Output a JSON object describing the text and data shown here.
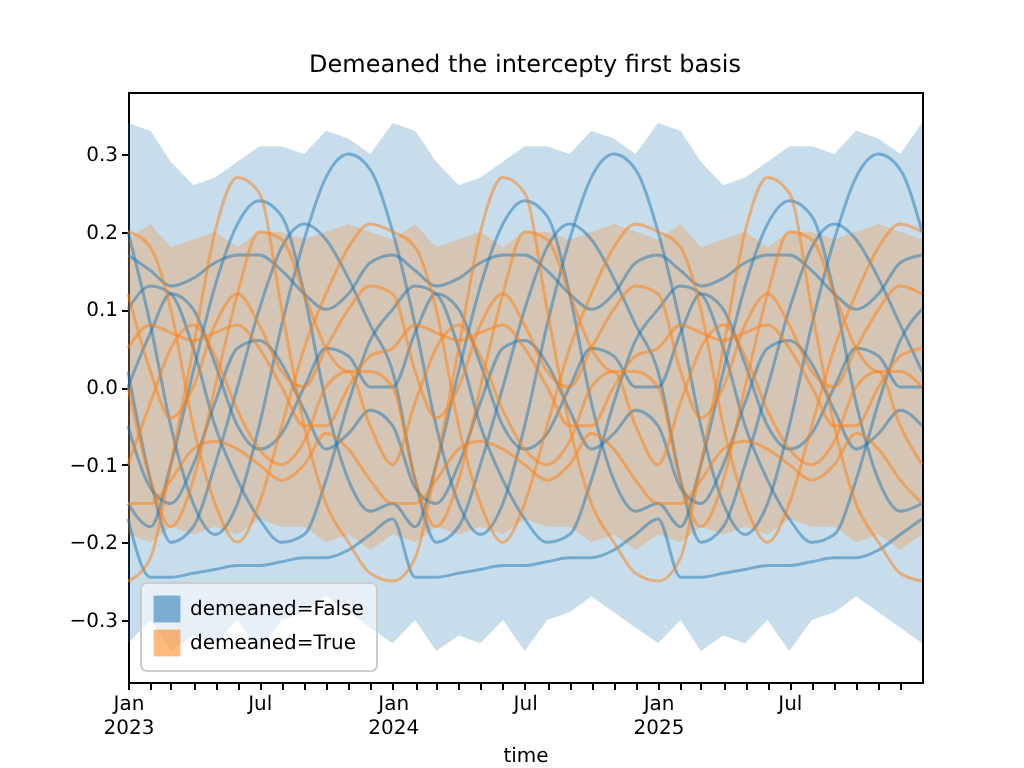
{
  "chart_data": {
    "type": "line",
    "title": "Demeaned the intercepty first basis",
    "xlabel": "time",
    "legend": "bottom left",
    "x": [
      "2023-01-01",
      "2023-02-01",
      "2023-03-01",
      "2023-04-01",
      "2023-05-01",
      "2023-06-01",
      "2023-07-01",
      "2023-08-01",
      "2023-09-01",
      "2023-10-01",
      "2023-11-01",
      "2023-12-01",
      "2024-01-01",
      "2024-02-01",
      "2024-03-01",
      "2024-04-01",
      "2024-05-01",
      "2024-06-01",
      "2024-07-01",
      "2024-08-01",
      "2024-09-01",
      "2024-10-01",
      "2024-11-01",
      "2024-12-01",
      "2025-01-01",
      "2025-02-01",
      "2025-03-01",
      "2025-04-01",
      "2025-05-01",
      "2025-06-01",
      "2025-07-01",
      "2025-08-01",
      "2025-09-01",
      "2025-10-01",
      "2025-11-01",
      "2025-12-01",
      "2025-12-31"
    ],
    "xlim": [
      "2023-01-01",
      "2025-12-31"
    ],
    "xticks": [
      {
        "value": "2023-01-01",
        "label": "Jan\n2023"
      },
      {
        "value": "2023-02-01",
        "label": null
      },
      {
        "value": "2023-03-01",
        "label": null
      },
      {
        "value": "2023-04-01",
        "label": null
      },
      {
        "value": "2023-05-01",
        "label": null
      },
      {
        "value": "2023-06-01",
        "label": null
      },
      {
        "value": "2023-07-01",
        "label": "Jul"
      },
      {
        "value": "2023-08-01",
        "label": null
      },
      {
        "value": "2023-09-01",
        "label": null
      },
      {
        "value": "2023-10-01",
        "label": null
      },
      {
        "value": "2023-11-01",
        "label": null
      },
      {
        "value": "2023-12-01",
        "label": null
      },
      {
        "value": "2024-01-01",
        "label": "Jan\n2024"
      },
      {
        "value": "2024-02-01",
        "label": null
      },
      {
        "value": "2024-03-01",
        "label": null
      },
      {
        "value": "2024-04-01",
        "label": null
      },
      {
        "value": "2024-05-01",
        "label": null
      },
      {
        "value": "2024-06-01",
        "label": null
      },
      {
        "value": "2024-07-01",
        "label": "Jul"
      },
      {
        "value": "2024-08-01",
        "label": null
      },
      {
        "value": "2024-09-01",
        "label": null
      },
      {
        "value": "2024-10-01",
        "label": null
      },
      {
        "value": "2024-11-01",
        "label": null
      },
      {
        "value": "2024-12-01",
        "label": null
      },
      {
        "value": "2025-01-01",
        "label": "Jan\n2025"
      },
      {
        "value": "2025-02-01",
        "label": null
      },
      {
        "value": "2025-03-01",
        "label": null
      },
      {
        "value": "2025-04-01",
        "label": null
      },
      {
        "value": "2025-05-01",
        "label": null
      },
      {
        "value": "2025-06-01",
        "label": null
      },
      {
        "value": "2025-07-01",
        "label": "Jul"
      },
      {
        "value": "2025-08-01",
        "label": null
      },
      {
        "value": "2025-09-01",
        "label": null
      },
      {
        "value": "2025-10-01",
        "label": null
      },
      {
        "value": "2025-11-01",
        "label": null
      },
      {
        "value": "2025-12-01",
        "label": null
      }
    ],
    "ylim": [
      -0.38,
      0.38
    ],
    "yticks": [
      {
        "value": -0.3,
        "label": "−0.3"
      },
      {
        "value": -0.2,
        "label": "−0.2"
      },
      {
        "value": -0.1,
        "label": "−0.1"
      },
      {
        "value": 0,
        "label": "0.0"
      },
      {
        "value": 0.1,
        "label": "0.1"
      },
      {
        "value": 0.2,
        "label": "0.2"
      },
      {
        "value": 0.3,
        "label": "0.3"
      }
    ],
    "series": [
      {
        "type": "area",
        "name": "demeaned=False",
        "color": "#1f77b4",
        "values": [
          null,
          null,
          null,
          null,
          null,
          null,
          null,
          null,
          null,
          null,
          null,
          null,
          null,
          null,
          null,
          null,
          null,
          null,
          null,
          null,
          null,
          null,
          null,
          null,
          null,
          null,
          null,
          null,
          null,
          null,
          null,
          null,
          null,
          null,
          null,
          null,
          null
        ],
        "lower": [
          -0.33,
          -0.3,
          -0.34,
          -0.32,
          -0.33,
          -0.3,
          -0.34,
          -0.3,
          -0.29,
          -0.27,
          -0.29,
          -0.31,
          -0.33,
          -0.3,
          -0.34,
          -0.32,
          -0.33,
          -0.3,
          -0.34,
          -0.3,
          -0.29,
          -0.27,
          -0.29,
          -0.31,
          -0.33,
          -0.3,
          -0.34,
          -0.32,
          -0.33,
          -0.3,
          -0.34,
          -0.3,
          -0.29,
          -0.27,
          -0.29,
          -0.31,
          -0.33
        ],
        "upper": [
          0.34,
          0.33,
          0.29,
          0.26,
          0.27,
          0.29,
          0.31,
          0.31,
          0.3,
          0.33,
          0.32,
          0.3,
          0.34,
          0.33,
          0.29,
          0.26,
          0.27,
          0.29,
          0.31,
          0.31,
          0.3,
          0.33,
          0.32,
          0.3,
          0.34,
          0.33,
          0.29,
          0.26,
          0.27,
          0.29,
          0.31,
          0.31,
          0.3,
          0.33,
          0.32,
          0.3,
          0.34
        ]
      },
      {
        "type": "area",
        "name": "demeaned=True",
        "color": "#ff7f0e",
        "values": [
          null,
          null,
          null,
          null,
          null,
          null,
          null,
          null,
          null,
          null,
          null,
          null,
          null,
          null,
          null,
          null,
          null,
          null,
          null,
          null,
          null,
          null,
          null,
          null,
          null,
          null,
          null,
          null,
          null,
          null,
          null,
          null,
          null,
          null,
          null,
          null,
          null
        ],
        "lower": [
          -0.19,
          -0.2,
          -0.18,
          -0.19,
          -0.18,
          -0.19,
          -0.17,
          -0.18,
          -0.18,
          -0.2,
          -0.19,
          -0.21,
          -0.19,
          -0.2,
          -0.18,
          -0.19,
          -0.18,
          -0.19,
          -0.17,
          -0.18,
          -0.18,
          -0.2,
          -0.19,
          -0.21,
          -0.19,
          -0.2,
          -0.18,
          -0.19,
          -0.18,
          -0.19,
          -0.17,
          -0.18,
          -0.18,
          -0.2,
          -0.19,
          -0.21,
          -0.19
        ],
        "upper": [
          0.19,
          0.21,
          0.18,
          0.19,
          0.2,
          0.18,
          0.2,
          0.2,
          0.19,
          0.2,
          0.21,
          0.2,
          0.19,
          0.21,
          0.18,
          0.19,
          0.2,
          0.18,
          0.2,
          0.2,
          0.19,
          0.2,
          0.21,
          0.2,
          0.19,
          0.21,
          0.18,
          0.19,
          0.2,
          0.18,
          0.2,
          0.2,
          0.19,
          0.2,
          0.21,
          0.2,
          0.19
        ]
      },
      {
        "type": "line",
        "color": "#1f77b4",
        "values": [
          -0.17,
          -0.245,
          -0.245,
          -0.24,
          -0.235,
          -0.23,
          -0.23,
          -0.225,
          -0.22,
          -0.22,
          -0.21,
          -0.19,
          -0.17,
          -0.245,
          -0.245,
          -0.24,
          -0.235,
          -0.23,
          -0.23,
          -0.225,
          -0.22,
          -0.22,
          -0.21,
          -0.19,
          -0.17,
          -0.245,
          -0.245,
          -0.24,
          -0.235,
          -0.23,
          -0.23,
          -0.225,
          -0.22,
          -0.22,
          -0.21,
          -0.19,
          -0.17
        ]
      },
      {
        "type": "line",
        "color": "#1f77b4",
        "values": [
          0.2,
          0.08,
          -0.05,
          -0.15,
          -0.19,
          -0.15,
          -0.05,
          0.08,
          0.19,
          0.27,
          0.3,
          0.28,
          0.2,
          0.08,
          -0.05,
          -0.15,
          -0.19,
          -0.15,
          -0.05,
          0.08,
          0.19,
          0.27,
          0.3,
          0.28,
          0.2,
          0.08,
          -0.05,
          -0.15,
          -0.19,
          -0.15,
          -0.05,
          0.08,
          0.19,
          0.27,
          0.3,
          0.28,
          0.2
        ]
      },
      {
        "type": "line",
        "color": "#1f77b4",
        "values": [
          -0.15,
          -0.18,
          -0.1,
          0.02,
          0.13,
          0.21,
          0.24,
          0.22,
          0.12,
          -0.02,
          -0.12,
          -0.16,
          -0.15,
          -0.18,
          -0.1,
          0.02,
          0.13,
          0.21,
          0.24,
          0.22,
          0.12,
          -0.02,
          -0.12,
          -0.16,
          -0.15,
          -0.18,
          -0.1,
          0.02,
          0.13,
          0.21,
          0.24,
          0.22,
          0.12,
          -0.02,
          -0.12,
          -0.16,
          -0.15
        ]
      },
      {
        "type": "line",
        "color": "#1f77b4",
        "values": [
          0.02,
          -0.12,
          -0.2,
          -0.18,
          -0.1,
          0,
          0.1,
          0.18,
          0.21,
          0.19,
          0.14,
          0.08,
          0.02,
          -0.12,
          -0.2,
          -0.18,
          -0.1,
          0,
          0.1,
          0.18,
          0.21,
          0.19,
          0.14,
          0.08,
          0.02,
          -0.12,
          -0.2,
          -0.18,
          -0.1,
          0,
          0.1,
          0.18,
          0.21,
          0.19,
          0.14,
          0.08,
          0.02
        ]
      },
      {
        "type": "line",
        "color": "#1f77b4",
        "values": [
          0.1,
          0.13,
          0.12,
          0.05,
          -0.05,
          -0.12,
          -0.17,
          -0.2,
          -0.19,
          -0.12,
          -0.02,
          0.06,
          0.1,
          0.13,
          0.12,
          0.05,
          -0.05,
          -0.12,
          -0.17,
          -0.2,
          -0.19,
          -0.12,
          -0.02,
          0.06,
          0.1,
          0.13,
          0.12,
          0.05,
          -0.05,
          -0.12,
          -0.17,
          -0.2,
          -0.19,
          -0.12,
          -0.02,
          0.06,
          0.1
        ]
      },
      {
        "type": "line",
        "color": "#1f77b4",
        "values": [
          0.17,
          0.15,
          0.13,
          0.14,
          0.16,
          0.17,
          0.17,
          0.15,
          0.12,
          0.1,
          0.12,
          0.16,
          0.17,
          0.15,
          0.13,
          0.14,
          0.16,
          0.17,
          0.17,
          0.15,
          0.12,
          0.1,
          0.12,
          0.16,
          0.17,
          0.15,
          0.13,
          0.14,
          0.16,
          0.17,
          0.17,
          0.15,
          0.12,
          0.1,
          0.12,
          0.16,
          0.17
        ]
      },
      {
        "type": "line",
        "color": "#1f77b4",
        "values": [
          0,
          0.07,
          0.12,
          0.1,
          0.03,
          -0.05,
          -0.08,
          -0.06,
          0,
          0.05,
          0.04,
          0,
          0,
          0.07,
          0.12,
          0.1,
          0.03,
          -0.05,
          -0.08,
          -0.06,
          0,
          0.05,
          0.04,
          0,
          0,
          0.07,
          0.12,
          0.1,
          0.03,
          -0.05,
          -0.08,
          -0.06,
          0,
          0.05,
          0.04,
          0,
          0
        ]
      },
      {
        "type": "line",
        "color": "#1f77b4",
        "values": [
          -0.05,
          -0.13,
          -0.15,
          -0.1,
          -0.02,
          0.05,
          0.06,
          0.03,
          -0.03,
          -0.08,
          -0.06,
          -0.03,
          -0.05,
          -0.13,
          -0.15,
          -0.1,
          -0.02,
          0.05,
          0.06,
          0.03,
          -0.03,
          -0.08,
          -0.06,
          -0.03,
          -0.05,
          -0.13,
          -0.15,
          -0.1,
          -0.02,
          0.05,
          0.06,
          0.03,
          -0.03,
          -0.08,
          -0.06,
          -0.03,
          -0.05
        ]
      },
      {
        "type": "line",
        "color": "#ff7f0e",
        "values": [
          -0.25,
          -0.22,
          -0.1,
          0.05,
          0.2,
          0.27,
          0.25,
          0.1,
          -0.05,
          -0.15,
          -0.2,
          -0.24,
          -0.25,
          -0.22,
          -0.1,
          0.05,
          0.2,
          0.27,
          0.25,
          0.1,
          -0.05,
          -0.15,
          -0.2,
          -0.24,
          -0.25,
          -0.22,
          -0.1,
          0.05,
          0.2,
          0.27,
          0.25,
          0.1,
          -0.05,
          -0.15,
          -0.2,
          -0.24,
          -0.25
        ]
      },
      {
        "type": "line",
        "color": "#ff7f0e",
        "values": [
          0.2,
          0.18,
          0.1,
          -0.05,
          -0.15,
          -0.2,
          -0.15,
          -0.05,
          0.05,
          0.12,
          0.18,
          0.21,
          0.2,
          0.18,
          0.1,
          -0.05,
          -0.15,
          -0.2,
          -0.15,
          -0.05,
          0.05,
          0.12,
          0.18,
          0.21,
          0.2,
          0.18,
          0.1,
          -0.05,
          -0.15,
          -0.2,
          -0.15,
          -0.05,
          0.05,
          0.12,
          0.18,
          0.21,
          0.2
        ]
      },
      {
        "type": "line",
        "color": "#ff7f0e",
        "values": [
          0.05,
          0.08,
          0.07,
          0.06,
          0.07,
          0.08,
          0.05,
          0,
          -0.05,
          -0.05,
          0,
          0.04,
          0.05,
          0.08,
          0.07,
          0.06,
          0.07,
          0.08,
          0.05,
          0,
          -0.05,
          -0.05,
          0,
          0.04,
          0.05,
          0.08,
          0.07,
          0.06,
          0.07,
          0.08,
          0.05,
          0,
          -0.05,
          -0.05,
          0,
          0.04,
          0.05
        ]
      },
      {
        "type": "line",
        "color": "#ff7f0e",
        "values": [
          -0.1,
          -0.02,
          0.05,
          0.08,
          0.04,
          -0.03,
          -0.08,
          -0.1,
          -0.07,
          0,
          0.02,
          -0.05,
          -0.1,
          -0.02,
          0.05,
          0.08,
          0.04,
          -0.03,
          -0.08,
          -0.1,
          -0.07,
          0,
          0.02,
          -0.05,
          -0.1,
          -0.02,
          0.05,
          0.08,
          0.04,
          -0.03,
          -0.08,
          -0.1,
          -0.07,
          0,
          0.02,
          -0.05,
          -0.1
        ]
      },
      {
        "type": "line",
        "color": "#ff7f0e",
        "values": [
          0,
          -0.12,
          -0.18,
          -0.12,
          0,
          0.12,
          0.2,
          0.19,
          0.12,
          0.05,
          0.02,
          0.02,
          0,
          -0.12,
          -0.18,
          -0.12,
          0,
          0.12,
          0.2,
          0.19,
          0.12,
          0.05,
          0.02,
          0.02,
          0,
          -0.12,
          -0.18,
          -0.12,
          0,
          0.12,
          0.2,
          0.19,
          0.12,
          0.05,
          0.02,
          0.02,
          0
        ]
      },
      {
        "type": "line",
        "color": "#ff7f0e",
        "values": [
          -0.15,
          -0.15,
          -0.12,
          -0.08,
          -0.07,
          -0.08,
          -0.1,
          -0.12,
          -0.1,
          -0.06,
          -0.08,
          -0.12,
          -0.15,
          -0.15,
          -0.12,
          -0.08,
          -0.07,
          -0.08,
          -0.1,
          -0.12,
          -0.1,
          -0.06,
          -0.08,
          -0.12,
          -0.15,
          -0.15,
          -0.12,
          -0.08,
          -0.07,
          -0.08,
          -0.1,
          -0.12,
          -0.1,
          -0.06,
          -0.08,
          -0.12,
          -0.15
        ]
      },
      {
        "type": "line",
        "color": "#ff7f0e",
        "values": [
          0.12,
          0.02,
          -0.04,
          0,
          0.08,
          0.12,
          0.08,
          0.02,
          0,
          0.05,
          0.1,
          0.13,
          0.12,
          0.02,
          -0.04,
          0,
          0.08,
          0.12,
          0.08,
          0.02,
          0,
          0.05,
          0.1,
          0.13,
          0.12,
          0.02,
          -0.04,
          0,
          0.08,
          0.12,
          0.08,
          0.02,
          0,
          0.05,
          0.1,
          0.13,
          0.12
        ]
      }
    ]
  }
}
